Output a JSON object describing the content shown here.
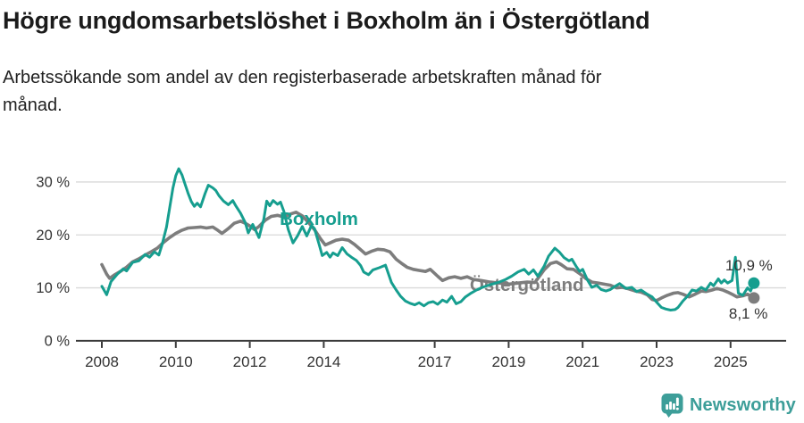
{
  "header": {
    "title": "Högre ungdomsarbetslöshet i Boxholm än i Östergötland",
    "subtitle_lines": [
      "Arbetssökande som andel av den registerbaserade arbetskraften månad för",
      "månad."
    ]
  },
  "chart_data": {
    "type": "line",
    "title": "Högre ungdomsarbetslöshet i Boxholm än i Östergötland",
    "subtitle": "Arbetssökande som andel av den registerbaserade arbetskraften månad för månad.",
    "unit": "%",
    "grid": "horizontal-only",
    "legend_position": "inline-labels-on-lines",
    "x_axis": {
      "range": [
        2007.3,
        2026.3
      ],
      "ticks": [
        {
          "value": 2008,
          "label": "2008"
        },
        {
          "value": 2010,
          "label": "2010"
        },
        {
          "value": 2012,
          "label": "2012"
        },
        {
          "value": 2014,
          "label": "2014"
        },
        {
          "value": 2017,
          "label": "2017"
        },
        {
          "value": 2019,
          "label": "2019"
        },
        {
          "value": 2021,
          "label": "2021"
        },
        {
          "value": 2023,
          "label": "2023"
        },
        {
          "value": 2025,
          "label": "2025"
        }
      ]
    },
    "y_axis": {
      "range": [
        0,
        33
      ],
      "ticks": [
        {
          "value": 0,
          "label": "0 %"
        },
        {
          "value": 10,
          "label": "10 %"
        },
        {
          "value": 20,
          "label": "20 %"
        },
        {
          "value": 30,
          "label": "30 %"
        }
      ]
    },
    "series": [
      {
        "name": "Östergötland",
        "color": "#7d7d7d",
        "line_width": 3.6,
        "end_label": "8,1 %",
        "end_value": 8.1,
        "label_at": [
          2017.95,
          9.4
        ],
        "end_label_offset": [
          -28,
          23
        ],
        "points": [
          [
            2008.0,
            14.4
          ],
          [
            2008.13,
            12.6
          ],
          [
            2008.21,
            11.8
          ],
          [
            2008.33,
            12.4
          ],
          [
            2008.5,
            13.1
          ],
          [
            2008.67,
            13.9
          ],
          [
            2008.83,
            14.9
          ],
          [
            2009.0,
            15.5
          ],
          [
            2009.17,
            16.2
          ],
          [
            2009.33,
            16.8
          ],
          [
            2009.5,
            17.5
          ],
          [
            2009.67,
            18.6
          ],
          [
            2009.83,
            19.5
          ],
          [
            2010.0,
            20.3
          ],
          [
            2010.17,
            20.9
          ],
          [
            2010.33,
            21.3
          ],
          [
            2010.5,
            21.4
          ],
          [
            2010.67,
            21.5
          ],
          [
            2010.83,
            21.3
          ],
          [
            2011.0,
            21.5
          ],
          [
            2011.13,
            20.9
          ],
          [
            2011.25,
            20.3
          ],
          [
            2011.42,
            21.2
          ],
          [
            2011.58,
            22.2
          ],
          [
            2011.75,
            22.6
          ],
          [
            2011.88,
            22.2
          ],
          [
            2012.0,
            21.7
          ],
          [
            2012.13,
            21.0
          ],
          [
            2012.25,
            21.6
          ],
          [
            2012.42,
            22.8
          ],
          [
            2012.58,
            23.5
          ],
          [
            2012.75,
            23.7
          ],
          [
            2012.92,
            23.4
          ],
          [
            2013.08,
            23.9
          ],
          [
            2013.25,
            24.3
          ],
          [
            2013.42,
            23.6
          ],
          [
            2013.58,
            22.4
          ],
          [
            2013.75,
            21.0
          ],
          [
            2013.92,
            19.2
          ],
          [
            2014.04,
            18.1
          ],
          [
            2014.17,
            18.5
          ],
          [
            2014.33,
            19.0
          ],
          [
            2014.5,
            19.2
          ],
          [
            2014.67,
            19.0
          ],
          [
            2014.83,
            18.2
          ],
          [
            2015.0,
            17.2
          ],
          [
            2015.13,
            16.4
          ],
          [
            2015.29,
            16.9
          ],
          [
            2015.46,
            17.3
          ],
          [
            2015.63,
            17.2
          ],
          [
            2015.79,
            16.8
          ],
          [
            2015.96,
            15.4
          ],
          [
            2016.13,
            14.5
          ],
          [
            2016.25,
            13.9
          ],
          [
            2016.42,
            13.5
          ],
          [
            2016.58,
            13.3
          ],
          [
            2016.75,
            13.1
          ],
          [
            2016.88,
            13.5
          ],
          [
            2016.96,
            13.0
          ],
          [
            2017.08,
            12.2
          ],
          [
            2017.21,
            11.4
          ],
          [
            2017.38,
            11.9
          ],
          [
            2017.54,
            12.1
          ],
          [
            2017.71,
            11.8
          ],
          [
            2017.88,
            12.1
          ],
          [
            2018.04,
            11.6
          ],
          [
            2018.25,
            11.4
          ],
          [
            2018.5,
            11.1
          ],
          [
            2018.75,
            10.9
          ],
          [
            2019.0,
            10.7
          ],
          [
            2019.25,
            10.9
          ],
          [
            2019.5,
            11.1
          ],
          [
            2019.71,
            11.0
          ],
          [
            2019.96,
            13.4
          ],
          [
            2020.13,
            14.6
          ],
          [
            2020.29,
            14.9
          ],
          [
            2020.42,
            14.4
          ],
          [
            2020.58,
            13.6
          ],
          [
            2020.75,
            13.5
          ],
          [
            2020.92,
            12.7
          ],
          [
            2021.08,
            11.8
          ],
          [
            2021.25,
            11.1
          ],
          [
            2021.42,
            10.9
          ],
          [
            2021.58,
            10.7
          ],
          [
            2021.75,
            10.5
          ],
          [
            2021.92,
            10.0
          ],
          [
            2022.08,
            10.1
          ],
          [
            2022.25,
            9.8
          ],
          [
            2022.42,
            9.4
          ],
          [
            2022.58,
            9.2
          ],
          [
            2022.75,
            8.7
          ],
          [
            2022.88,
            7.8
          ],
          [
            2023.0,
            7.6
          ],
          [
            2023.13,
            8.1
          ],
          [
            2023.29,
            8.6
          ],
          [
            2023.46,
            9.0
          ],
          [
            2023.58,
            9.1
          ],
          [
            2023.71,
            8.8
          ],
          [
            2023.88,
            8.3
          ],
          [
            2024.04,
            8.8
          ],
          [
            2024.21,
            9.4
          ],
          [
            2024.33,
            9.3
          ],
          [
            2024.5,
            9.6
          ],
          [
            2024.63,
            9.9
          ],
          [
            2024.79,
            9.6
          ],
          [
            2024.92,
            9.2
          ],
          [
            2025.04,
            8.8
          ],
          [
            2025.17,
            8.3
          ],
          [
            2025.33,
            8.5
          ],
          [
            2025.46,
            8.8
          ],
          [
            2025.63,
            8.1
          ]
        ]
      },
      {
        "name": "Boxholm",
        "color": "#169e8f",
        "line_width": 3,
        "end_label": "10,9 %",
        "end_value": 10.9,
        "label_at": [
          2012.81,
          21.9
        ],
        "end_label_offset": [
          -32,
          -14
        ],
        "points": [
          [
            2008.0,
            10.3
          ],
          [
            2008.13,
            8.7
          ],
          [
            2008.25,
            11.2
          ],
          [
            2008.42,
            12.6
          ],
          [
            2008.58,
            13.6
          ],
          [
            2008.67,
            13.2
          ],
          [
            2008.83,
            14.8
          ],
          [
            2009.0,
            15.1
          ],
          [
            2009.17,
            16.3
          ],
          [
            2009.29,
            15.8
          ],
          [
            2009.42,
            16.8
          ],
          [
            2009.54,
            16.2
          ],
          [
            2009.63,
            18.2
          ],
          [
            2009.75,
            21.5
          ],
          [
            2009.83,
            25.0
          ],
          [
            2009.92,
            28.8
          ],
          [
            2010.0,
            31.2
          ],
          [
            2010.08,
            32.5
          ],
          [
            2010.17,
            31.3
          ],
          [
            2010.25,
            29.6
          ],
          [
            2010.33,
            27.9
          ],
          [
            2010.42,
            26.3
          ],
          [
            2010.5,
            25.4
          ],
          [
            2010.58,
            26.0
          ],
          [
            2010.67,
            25.3
          ],
          [
            2010.79,
            27.8
          ],
          [
            2010.88,
            29.4
          ],
          [
            2011.0,
            28.9
          ],
          [
            2011.08,
            28.4
          ],
          [
            2011.17,
            27.4
          ],
          [
            2011.29,
            26.4
          ],
          [
            2011.42,
            25.7
          ],
          [
            2011.54,
            26.5
          ],
          [
            2011.63,
            25.4
          ],
          [
            2011.75,
            24.1
          ],
          [
            2011.88,
            22.3
          ],
          [
            2011.96,
            20.4
          ],
          [
            2012.08,
            22.0
          ],
          [
            2012.17,
            20.7
          ],
          [
            2012.25,
            19.5
          ],
          [
            2012.38,
            23.0
          ],
          [
            2012.46,
            26.4
          ],
          [
            2012.54,
            25.5
          ],
          [
            2012.63,
            26.5
          ],
          [
            2012.75,
            25.8
          ],
          [
            2012.83,
            26.2
          ],
          [
            2012.92,
            24.5
          ],
          [
            2013.04,
            21.0
          ],
          [
            2013.17,
            18.5
          ],
          [
            2013.29,
            19.8
          ],
          [
            2013.42,
            21.6
          ],
          [
            2013.54,
            19.8
          ],
          [
            2013.67,
            21.8
          ],
          [
            2013.75,
            21.2
          ],
          [
            2013.88,
            18.1
          ],
          [
            2013.96,
            16.1
          ],
          [
            2014.08,
            16.7
          ],
          [
            2014.17,
            15.8
          ],
          [
            2014.25,
            16.6
          ],
          [
            2014.38,
            16.1
          ],
          [
            2014.5,
            17.6
          ],
          [
            2014.63,
            16.4
          ],
          [
            2014.75,
            15.8
          ],
          [
            2014.88,
            15.2
          ],
          [
            2015.0,
            14.2
          ],
          [
            2015.08,
            13.0
          ],
          [
            2015.21,
            12.5
          ],
          [
            2015.33,
            13.4
          ],
          [
            2015.5,
            13.8
          ],
          [
            2015.67,
            14.3
          ],
          [
            2015.83,
            11.0
          ],
          [
            2015.96,
            9.6
          ],
          [
            2016.08,
            8.4
          ],
          [
            2016.21,
            7.5
          ],
          [
            2016.33,
            7.1
          ],
          [
            2016.46,
            6.8
          ],
          [
            2016.58,
            7.2
          ],
          [
            2016.71,
            6.6
          ],
          [
            2016.83,
            7.2
          ],
          [
            2016.96,
            7.4
          ],
          [
            2017.08,
            6.9
          ],
          [
            2017.21,
            7.7
          ],
          [
            2017.33,
            7.3
          ],
          [
            2017.46,
            8.4
          ],
          [
            2017.58,
            7.0
          ],
          [
            2017.71,
            7.4
          ],
          [
            2017.83,
            8.3
          ],
          [
            2017.96,
            8.9
          ],
          [
            2018.13,
            9.6
          ],
          [
            2018.29,
            10.1
          ],
          [
            2018.5,
            10.6
          ],
          [
            2018.71,
            11.0
          ],
          [
            2018.92,
            11.6
          ],
          [
            2019.08,
            12.2
          ],
          [
            2019.25,
            13.0
          ],
          [
            2019.42,
            13.5
          ],
          [
            2019.54,
            12.6
          ],
          [
            2019.67,
            13.4
          ],
          [
            2019.79,
            12.2
          ],
          [
            2019.96,
            14.1
          ],
          [
            2020.08,
            16.0
          ],
          [
            2020.25,
            17.5
          ],
          [
            2020.38,
            16.7
          ],
          [
            2020.5,
            15.7
          ],
          [
            2020.63,
            15.1
          ],
          [
            2020.71,
            15.4
          ],
          [
            2020.83,
            14.0
          ],
          [
            2020.92,
            13.1
          ],
          [
            2021.0,
            13.5
          ],
          [
            2021.13,
            11.5
          ],
          [
            2021.25,
            10.1
          ],
          [
            2021.38,
            10.5
          ],
          [
            2021.5,
            9.7
          ],
          [
            2021.63,
            9.4
          ],
          [
            2021.75,
            9.7
          ],
          [
            2021.88,
            10.3
          ],
          [
            2022.0,
            10.8
          ],
          [
            2022.17,
            9.9
          ],
          [
            2022.33,
            10.1
          ],
          [
            2022.46,
            9.3
          ],
          [
            2022.58,
            9.6
          ],
          [
            2022.75,
            8.8
          ],
          [
            2022.88,
            8.3
          ],
          [
            2023.0,
            7.3
          ],
          [
            2023.13,
            6.3
          ],
          [
            2023.25,
            6.0
          ],
          [
            2023.38,
            5.8
          ],
          [
            2023.5,
            5.9
          ],
          [
            2023.58,
            6.3
          ],
          [
            2023.71,
            7.5
          ],
          [
            2023.83,
            8.4
          ],
          [
            2023.96,
            9.6
          ],
          [
            2024.08,
            9.4
          ],
          [
            2024.21,
            10.1
          ],
          [
            2024.33,
            9.6
          ],
          [
            2024.46,
            10.9
          ],
          [
            2024.54,
            10.4
          ],
          [
            2024.67,
            11.7
          ],
          [
            2024.75,
            10.9
          ],
          [
            2024.83,
            11.5
          ],
          [
            2024.92,
            10.9
          ],
          [
            2025.04,
            11.4
          ],
          [
            2025.13,
            15.8
          ],
          [
            2025.21,
            9.0
          ],
          [
            2025.33,
            8.6
          ],
          [
            2025.46,
            10.0
          ],
          [
            2025.54,
            9.4
          ],
          [
            2025.63,
            10.9
          ]
        ]
      }
    ]
  },
  "footer": {
    "brand": "Newsworthy",
    "brand_color": "#3d9e99",
    "logo_icon": "bar-chart-speech-bubble"
  },
  "colors": {
    "boxholm_line": "#169e8f",
    "ostergotland_line": "#7d7d7d",
    "gridline": "#d9d9d9",
    "axis": "#3a3a3a",
    "tick_text": "#333333",
    "title_text": "#1b1b1b"
  }
}
